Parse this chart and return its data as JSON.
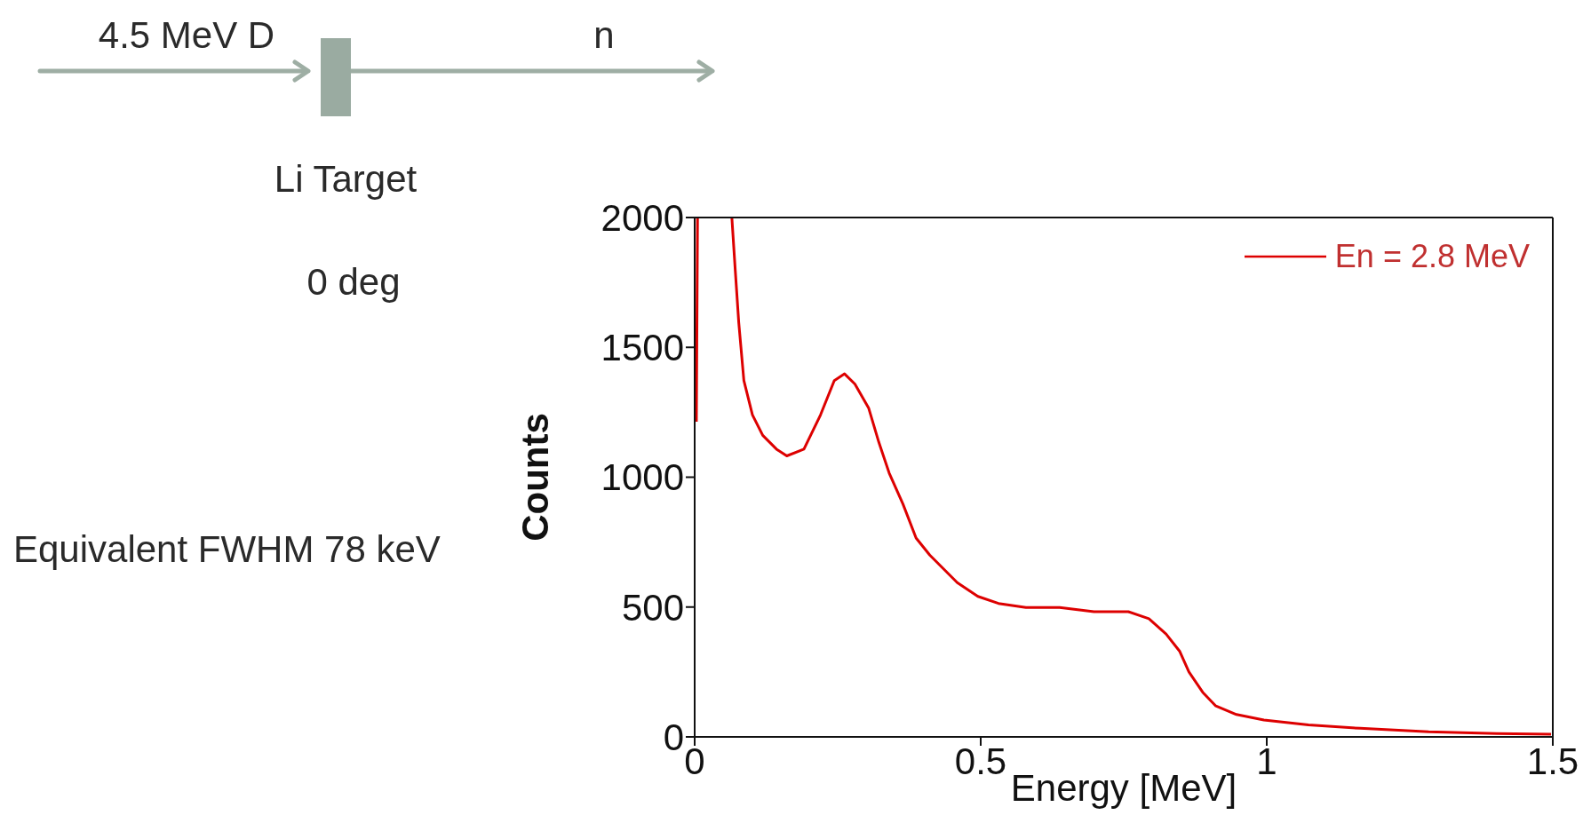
{
  "chart_data": {
    "type": "line",
    "xlabel": "Energy [MeV]",
    "ylabel": "Counts",
    "annotations": [
      "4.5 MeV D",
      "n",
      "Li Target",
      "0 deg",
      "Equivalent FWHM 78 keV"
    ],
    "xlim": [
      0,
      1.5
    ],
    "xticks": [
      0,
      0.5,
      1,
      1.5
    ],
    "ylim": [
      0,
      2000
    ],
    "yticks": [
      0,
      500,
      1000,
      1500,
      2000
    ],
    "legend": "top right",
    "grid": false,
    "marker": "none",
    "series": [
      {
        "name": "En = 2.8 MeV",
        "color": "#dd0000",
        "x": [
          0.003,
          0.005,
          0.03,
          0.065,
          0.071,
          0.077,
          0.086,
          0.101,
          0.119,
          0.143,
          0.161,
          0.191,
          0.22,
          0.244,
          0.262,
          0.28,
          0.304,
          0.322,
          0.34,
          0.364,
          0.387,
          0.411,
          0.435,
          0.459,
          0.495,
          0.531,
          0.579,
          0.638,
          0.698,
          0.758,
          0.794,
          0.824,
          0.848,
          0.864,
          0.888,
          0.911,
          0.947,
          0.995,
          1.073,
          1.163,
          1.283,
          1.402,
          1.497
        ],
        "values": [
          1214,
          2000,
          null,
          2000,
          1795,
          1597,
          1372,
          1240,
          1161,
          1108,
          1082,
          1108,
          1240,
          1372,
          1398,
          1359,
          1267,
          1134,
          1016,
          897,
          766,
          700,
          647,
          594,
          541,
          514,
          498,
          498,
          482,
          482,
          455,
          396,
          329,
          250,
          172,
          119,
          86,
          65,
          46,
          33,
          20,
          13,
          10
        ]
      }
    ]
  }
}
